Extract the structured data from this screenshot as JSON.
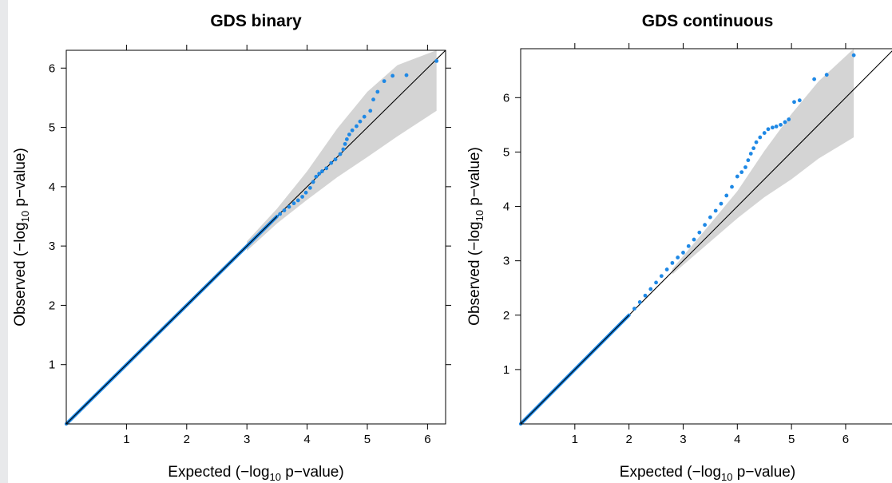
{
  "chart_data": [
    {
      "type": "scatter",
      "title": "GDS binary",
      "xlabel": {
        "prefix": "Expected (−log",
        "sub": "10",
        "suffix": " p−value)"
      },
      "ylabel": {
        "prefix": "Observed (−log",
        "sub": "10",
        "suffix": " p−value)"
      },
      "xlim": [
        0,
        6.3
      ],
      "ylim": [
        0,
        6.3
      ],
      "x_ticks": [
        1,
        2,
        3,
        4,
        5,
        6
      ],
      "y_ticks": [
        1,
        2,
        3,
        4,
        5,
        6
      ],
      "reference_line": "y = x",
      "confidence_band": {
        "x": [
          3.0,
          3.5,
          4.0,
          4.5,
          5.0,
          5.5,
          6.15
        ],
        "lower": [
          2.92,
          3.38,
          3.78,
          4.16,
          4.5,
          4.85,
          5.28
        ],
        "upper": [
          3.08,
          3.63,
          4.26,
          4.98,
          5.6,
          6.05,
          6.3
        ]
      },
      "series": [
        {
          "color": "#1e88e5",
          "line_to": 3.5,
          "points": [
            [
              3.55,
              3.54
            ],
            [
              3.62,
              3.6
            ],
            [
              3.7,
              3.66
            ],
            [
              3.78,
              3.72
            ],
            [
              3.85,
              3.77
            ],
            [
              3.92,
              3.83
            ],
            [
              3.98,
              3.9
            ],
            [
              4.05,
              3.98
            ],
            [
              4.1,
              4.08
            ],
            [
              4.15,
              4.17
            ],
            [
              4.2,
              4.22
            ],
            [
              4.25,
              4.26
            ],
            [
              4.32,
              4.31
            ],
            [
              4.4,
              4.4
            ],
            [
              4.47,
              4.46
            ],
            [
              4.55,
              4.55
            ],
            [
              4.6,
              4.63
            ],
            [
              4.63,
              4.72
            ],
            [
              4.66,
              4.8
            ],
            [
              4.7,
              4.88
            ],
            [
              4.75,
              4.95
            ],
            [
              4.82,
              5.02
            ],
            [
              4.88,
              5.1
            ],
            [
              4.95,
              5.18
            ],
            [
              5.05,
              5.28
            ],
            [
              5.1,
              5.47
            ],
            [
              5.17,
              5.6
            ],
            [
              5.28,
              5.78
            ],
            [
              5.42,
              5.87
            ],
            [
              5.65,
              5.88
            ],
            [
              6.15,
              6.12
            ]
          ]
        }
      ]
    },
    {
      "type": "scatter",
      "title": "GDS continuous",
      "xlabel": {
        "prefix": "Expected (−log",
        "sub": "10",
        "suffix": " p−value)"
      },
      "ylabel": {
        "prefix": "Observed (−log",
        "sub": "10",
        "suffix": " p−value)"
      },
      "xlim": [
        0,
        6.9
      ],
      "ylim": [
        0,
        6.9
      ],
      "x_ticks": [
        1,
        2,
        3,
        4,
        5,
        6
      ],
      "y_ticks": [
        1,
        2,
        3,
        4,
        5,
        6
      ],
      "reference_line": "y = x",
      "confidence_band": {
        "x": [
          2.8,
          3.5,
          4.0,
          4.5,
          5.0,
          5.5,
          6.15
        ],
        "lower": [
          2.75,
          3.35,
          3.78,
          4.17,
          4.5,
          4.88,
          5.27
        ],
        "upper": [
          2.85,
          3.68,
          4.28,
          5.02,
          5.7,
          6.3,
          6.9
        ]
      },
      "series": [
        {
          "color": "#1e88e5",
          "line_to": 2.0,
          "points": [
            [
              2.1,
              2.12
            ],
            [
              2.2,
              2.24
            ],
            [
              2.3,
              2.36
            ],
            [
              2.4,
              2.48
            ],
            [
              2.5,
              2.6
            ],
            [
              2.6,
              2.72
            ],
            [
              2.7,
              2.84
            ],
            [
              2.8,
              2.96
            ],
            [
              2.9,
              3.06
            ],
            [
              3.0,
              3.15
            ],
            [
              3.1,
              3.27
            ],
            [
              3.2,
              3.39
            ],
            [
              3.3,
              3.52
            ],
            [
              3.4,
              3.66
            ],
            [
              3.5,
              3.8
            ],
            [
              3.6,
              3.92
            ],
            [
              3.7,
              4.05
            ],
            [
              3.8,
              4.2
            ],
            [
              3.9,
              4.36
            ],
            [
              4.0,
              4.55
            ],
            [
              4.08,
              4.63
            ],
            [
              4.15,
              4.72
            ],
            [
              4.2,
              4.85
            ],
            [
              4.25,
              4.97
            ],
            [
              4.3,
              5.07
            ],
            [
              4.35,
              5.18
            ],
            [
              4.42,
              5.27
            ],
            [
              4.5,
              5.35
            ],
            [
              4.57,
              5.42
            ],
            [
              4.65,
              5.45
            ],
            [
              4.72,
              5.47
            ],
            [
              4.8,
              5.5
            ],
            [
              4.88,
              5.55
            ],
            [
              4.95,
              5.6
            ],
            [
              5.05,
              5.92
            ],
            [
              5.15,
              5.95
            ],
            [
              5.42,
              6.34
            ],
            [
              5.65,
              6.42
            ],
            [
              6.15,
              6.78
            ]
          ]
        }
      ]
    }
  ]
}
